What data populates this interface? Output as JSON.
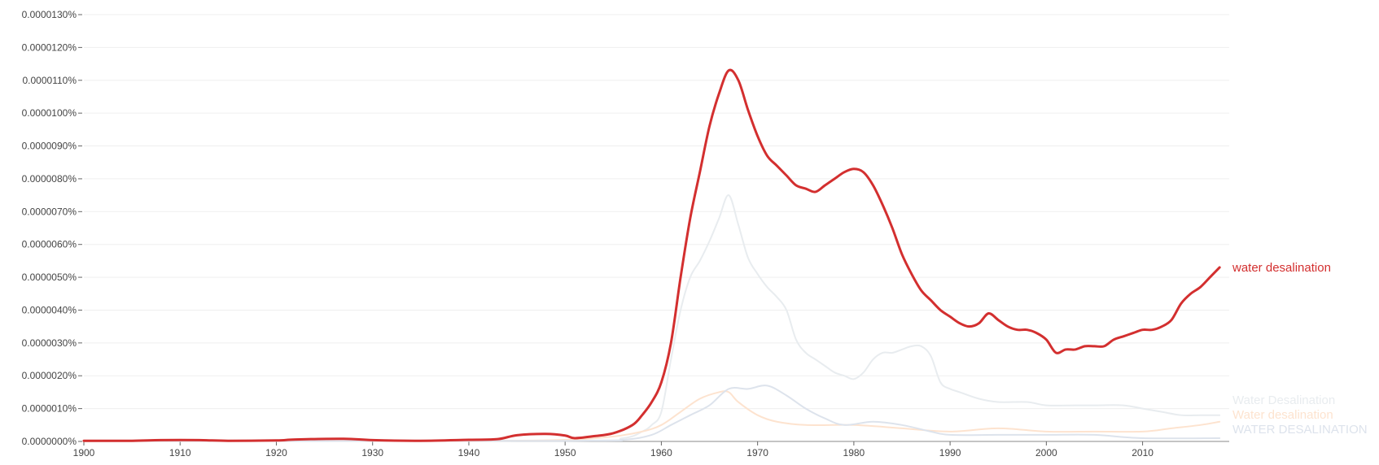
{
  "chart_data": {
    "type": "line",
    "title": "",
    "xlabel": "",
    "ylabel": "",
    "xlim": [
      1900,
      2019
    ],
    "ylim": [
      0,
      1.3e-05
    ],
    "grid": true,
    "x_ticks": [
      1900,
      1910,
      1920,
      1930,
      1940,
      1950,
      1960,
      1970,
      1980,
      1990,
      2000,
      2010
    ],
    "y_ticks": [
      "0.0000000%",
      "0.0000010%",
      "0.0000020%",
      "0.0000030%",
      "0.0000040%",
      "0.0000050%",
      "0.0000060%",
      "0.0000070%",
      "0.0000080%",
      "0.0000090%",
      "0.0000100%",
      "0.0000110%",
      "0.0000120%",
      "0.0000130%"
    ],
    "series": [
      {
        "name": "water desalination",
        "color": "#d32f2f",
        "points": [
          [
            1900,
            2e-08
          ],
          [
            1905,
            2e-08
          ],
          [
            1908,
            4e-08
          ],
          [
            1912,
            4e-08
          ],
          [
            1915,
            2e-08
          ],
          [
            1920,
            3e-08
          ],
          [
            1922,
            6e-08
          ],
          [
            1927,
            8e-08
          ],
          [
            1930,
            4e-08
          ],
          [
            1935,
            2e-08
          ],
          [
            1940,
            5e-08
          ],
          [
            1943,
            7e-08
          ],
          [
            1945,
            1.9e-07
          ],
          [
            1948,
            2.3e-07
          ],
          [
            1950,
            1.8e-07
          ],
          [
            1951,
            1e-07
          ],
          [
            1953,
            1.6e-07
          ],
          [
            1955,
            2.5e-07
          ],
          [
            1957,
            5e-07
          ],
          [
            1958,
            8e-07
          ],
          [
            1959,
            1.2e-06
          ],
          [
            1960,
            1.8e-06
          ],
          [
            1961,
            3e-06
          ],
          [
            1962,
            5e-06
          ],
          [
            1963,
            6.8e-06
          ],
          [
            1964,
            8.2e-06
          ],
          [
            1965,
            9.6e-06
          ],
          [
            1966,
            1.06e-05
          ],
          [
            1967,
            1.13e-05
          ],
          [
            1968,
            1.1e-05
          ],
          [
            1969,
            1.01e-05
          ],
          [
            1970,
            9.3e-06
          ],
          [
            1971,
            8.7e-06
          ],
          [
            1972,
            8.4e-06
          ],
          [
            1973,
            8.1e-06
          ],
          [
            1974,
            7.8e-06
          ],
          [
            1975,
            7.7e-06
          ],
          [
            1976,
            7.6e-06
          ],
          [
            1977,
            7.8e-06
          ],
          [
            1978,
            8e-06
          ],
          [
            1979,
            8.2e-06
          ],
          [
            1980,
            8.3e-06
          ],
          [
            1981,
            8.2e-06
          ],
          [
            1982,
            7.8e-06
          ],
          [
            1983,
            7.2e-06
          ],
          [
            1984,
            6.5e-06
          ],
          [
            1985,
            5.7e-06
          ],
          [
            1986,
            5.1e-06
          ],
          [
            1987,
            4.6e-06
          ],
          [
            1988,
            4.3e-06
          ],
          [
            1989,
            4e-06
          ],
          [
            1990,
            3.8e-06
          ],
          [
            1991,
            3.6e-06
          ],
          [
            1992,
            3.5e-06
          ],
          [
            1993,
            3.6e-06
          ],
          [
            1994,
            3.9e-06
          ],
          [
            1995,
            3.7e-06
          ],
          [
            1996,
            3.5e-06
          ],
          [
            1997,
            3.4e-06
          ],
          [
            1998,
            3.4e-06
          ],
          [
            1999,
            3.3e-06
          ],
          [
            2000,
            3.1e-06
          ],
          [
            2001,
            2.7e-06
          ],
          [
            2002,
            2.8e-06
          ],
          [
            2003,
            2.8e-06
          ],
          [
            2004,
            2.9e-06
          ],
          [
            2005,
            2.9e-06
          ],
          [
            2006,
            2.9e-06
          ],
          [
            2007,
            3.1e-06
          ],
          [
            2008,
            3.2e-06
          ],
          [
            2009,
            3.3e-06
          ],
          [
            2010,
            3.4e-06
          ],
          [
            2011,
            3.4e-06
          ],
          [
            2012,
            3.5e-06
          ],
          [
            2013,
            3.7e-06
          ],
          [
            2014,
            4.2e-06
          ],
          [
            2015,
            4.5e-06
          ],
          [
            2016,
            4.7e-06
          ],
          [
            2017,
            5e-06
          ],
          [
            2018,
            5.3e-06
          ]
        ]
      },
      {
        "name": "Water Desalination",
        "color": "#e8ecef",
        "points": [
          [
            1900,
            1e-08
          ],
          [
            1950,
            2e-08
          ],
          [
            1956,
            1e-07
          ],
          [
            1958,
            3e-07
          ],
          [
            1959,
            5e-07
          ],
          [
            1960,
            9e-07
          ],
          [
            1961,
            2.5e-06
          ],
          [
            1962,
            4e-06
          ],
          [
            1963,
            5e-06
          ],
          [
            1964,
            5.5e-06
          ],
          [
            1965,
            6.1e-06
          ],
          [
            1966,
            6.8e-06
          ],
          [
            1967,
            7.5e-06
          ],
          [
            1968,
            6.6e-06
          ],
          [
            1969,
            5.6e-06
          ],
          [
            1970,
            5.1e-06
          ],
          [
            1971,
            4.7e-06
          ],
          [
            1972,
            4.4e-06
          ],
          [
            1973,
            4e-06
          ],
          [
            1974,
            3.1e-06
          ],
          [
            1975,
            2.7e-06
          ],
          [
            1976,
            2.5e-06
          ],
          [
            1977,
            2.3e-06
          ],
          [
            1978,
            2.1e-06
          ],
          [
            1979,
            2e-06
          ],
          [
            1980,
            1.9e-06
          ],
          [
            1981,
            2.1e-06
          ],
          [
            1982,
            2.5e-06
          ],
          [
            1983,
            2.7e-06
          ],
          [
            1984,
            2.7e-06
          ],
          [
            1985,
            2.8e-06
          ],
          [
            1986,
            2.9e-06
          ],
          [
            1987,
            2.9e-06
          ],
          [
            1988,
            2.6e-06
          ],
          [
            1989,
            1.8e-06
          ],
          [
            1990,
            1.6e-06
          ],
          [
            1991,
            1.5e-06
          ],
          [
            1993,
            1.3e-06
          ],
          [
            1995,
            1.2e-06
          ],
          [
            1998,
            1.2e-06
          ],
          [
            2000,
            1.1e-06
          ],
          [
            2003,
            1.1e-06
          ],
          [
            2005,
            1.1e-06
          ],
          [
            2008,
            1.1e-06
          ],
          [
            2010,
            1e-06
          ],
          [
            2012,
            9e-07
          ],
          [
            2014,
            8e-07
          ],
          [
            2016,
            8e-07
          ],
          [
            2018,
            8e-07
          ]
        ]
      },
      {
        "name": "Water desalination",
        "color": "#fde3cf",
        "points": [
          [
            1900,
            1e-08
          ],
          [
            1940,
            2e-08
          ],
          [
            1950,
            5e-08
          ],
          [
            1955,
            1.5e-07
          ],
          [
            1958,
            3e-07
          ],
          [
            1960,
            5e-07
          ],
          [
            1962,
            9e-07
          ],
          [
            1964,
            1.3e-06
          ],
          [
            1966,
            1.5e-06
          ],
          [
            1967,
            1.5e-06
          ],
          [
            1968,
            1.2e-06
          ],
          [
            1970,
            8e-07
          ],
          [
            1972,
            6e-07
          ],
          [
            1975,
            5e-07
          ],
          [
            1980,
            5e-07
          ],
          [
            1985,
            4e-07
          ],
          [
            1990,
            3e-07
          ],
          [
            1995,
            4e-07
          ],
          [
            2000,
            3e-07
          ],
          [
            2005,
            3e-07
          ],
          [
            2010,
            3e-07
          ],
          [
            2013,
            4e-07
          ],
          [
            2016,
            5e-07
          ],
          [
            2018,
            6e-07
          ]
        ]
      },
      {
        "name": "WATER DESALINATION",
        "color": "#dde3ec",
        "points": [
          [
            1900,
            1e-08
          ],
          [
            1950,
            2e-08
          ],
          [
            1956,
            5e-08
          ],
          [
            1959,
            2e-07
          ],
          [
            1961,
            5e-07
          ],
          [
            1963,
            8e-07
          ],
          [
            1965,
            1.1e-06
          ],
          [
            1967,
            1.6e-06
          ],
          [
            1969,
            1.6e-06
          ],
          [
            1971,
            1.7e-06
          ],
          [
            1973,
            1.4e-06
          ],
          [
            1975,
            1e-06
          ],
          [
            1977,
            7e-07
          ],
          [
            1979,
            5e-07
          ],
          [
            1982,
            6e-07
          ],
          [
            1985,
            5e-07
          ],
          [
            1988,
            3e-07
          ],
          [
            1990,
            2e-07
          ],
          [
            1995,
            2e-07
          ],
          [
            2000,
            2e-07
          ],
          [
            2005,
            2e-07
          ],
          [
            2010,
            1e-07
          ],
          [
            2018,
            1e-07
          ]
        ]
      }
    ]
  }
}
